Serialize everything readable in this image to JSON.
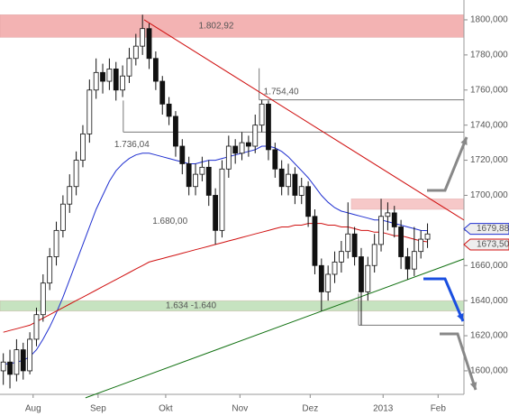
{
  "chart_data": {
    "type": "candlestick",
    "x": [
      0,
      1,
      2,
      3,
      4,
      5,
      6,
      7,
      8,
      9,
      10,
      11,
      12,
      13,
      14,
      15,
      16,
      17,
      18,
      19,
      20,
      21,
      22,
      23,
      24,
      25,
      26,
      27,
      28,
      29,
      30,
      31,
      32,
      33,
      34,
      35,
      36,
      37,
      38,
      39,
      40,
      41,
      42,
      43,
      44,
      45,
      46,
      47,
      48,
      49,
      50,
      51,
      52,
      53,
      54,
      55,
      56,
      57,
      58,
      59,
      60,
      61,
      62,
      63,
      64
    ],
    "open": [
      1600,
      1605,
      1598,
      1612,
      1600,
      1618,
      1632,
      1650,
      1665,
      1680,
      1695,
      1705,
      1720,
      1735,
      1760,
      1770,
      1765,
      1772,
      1760,
      1768,
      1778,
      1785,
      1795,
      1778,
      1765,
      1752,
      1745,
      1728,
      1718,
      1705,
      1712,
      1716,
      1700,
      1680,
      1715,
      1728,
      1724,
      1730,
      1728,
      1740,
      1752,
      1726,
      1715,
      1705,
      1712,
      1700,
      1705,
      1688,
      1660,
      1645,
      1655,
      1662,
      1668,
      1678,
      1665,
      1645,
      1660,
      1672,
      1688,
      1690,
      1682,
      1665,
      1658,
      1668,
      1675
    ],
    "high": [
      1610,
      1612,
      1618,
      1616,
      1622,
      1636,
      1655,
      1670,
      1685,
      1700,
      1712,
      1725,
      1740,
      1766,
      1778,
      1775,
      1778,
      1776,
      1774,
      1784,
      1792,
      1802.92,
      1798,
      1782,
      1768,
      1756,
      1748,
      1732,
      1722,
      1718,
      1722,
      1720,
      1704,
      1720,
      1734,
      1732,
      1736,
      1734,
      1746,
      1754.4,
      1754,
      1730,
      1720,
      1718,
      1716,
      1710,
      1708,
      1692,
      1664,
      1660,
      1668,
      1674,
      1696,
      1682,
      1670,
      1665,
      1678,
      1698,
      1696,
      1694,
      1686,
      1670,
      1682,
      1680,
      1684
    ],
    "low": [
      1592,
      1590,
      1594,
      1595,
      1598,
      1614,
      1628,
      1646,
      1660,
      1676,
      1690,
      1700,
      1716,
      1730,
      1755,
      1758,
      1760,
      1754,
      1756,
      1764,
      1774,
      1780,
      1772,
      1760,
      1746,
      1740,
      1722,
      1712,
      1700,
      1700,
      1708,
      1694,
      1672,
      1676,
      1710,
      1718,
      1720,
      1722,
      1724,
      1736,
      1720,
      1710,
      1700,
      1700,
      1695,
      1695,
      1682,
      1655,
      1634,
      1640,
      1650,
      1656,
      1664,
      1660,
      1626,
      1640,
      1656,
      1668,
      1680,
      1676,
      1658,
      1652,
      1654,
      1664,
      1670
    ],
    "close": [
      1605,
      1598,
      1612,
      1600,
      1618,
      1632,
      1650,
      1665,
      1680,
      1695,
      1705,
      1720,
      1735,
      1760,
      1770,
      1765,
      1772,
      1760,
      1768,
      1778,
      1785,
      1795,
      1778,
      1765,
      1752,
      1745,
      1728,
      1718,
      1705,
      1712,
      1716,
      1700,
      1680,
      1715,
      1728,
      1724,
      1730,
      1728,
      1740,
      1752,
      1726,
      1715,
      1705,
      1712,
      1700,
      1705,
      1688,
      1660,
      1645,
      1655,
      1662,
      1668,
      1678,
      1665,
      1645,
      1660,
      1672,
      1688,
      1690,
      1682,
      1665,
      1658,
      1668,
      1675,
      1678
    ],
    "color": "#111111",
    "moving_averages": [
      {
        "color": "#1f2fd0",
        "values": [
          1604,
          1604,
          1605,
          1606,
          1608,
          1612,
          1618,
          1625,
          1633,
          1642,
          1652,
          1662,
          1672,
          1682,
          1692,
          1700,
          1708,
          1714,
          1718,
          1721,
          1723,
          1724,
          1724,
          1723,
          1722,
          1721,
          1720,
          1719,
          1718,
          1718,
          1719,
          1720,
          1720,
          1721,
          1722,
          1723,
          1724,
          1725,
          1726,
          1728,
          1728,
          1727,
          1725,
          1722,
          1718,
          1714,
          1710,
          1705,
          1700,
          1696,
          1693,
          1691,
          1690,
          1689,
          1688,
          1687,
          1686,
          1686,
          1685,
          1684,
          1683,
          1682,
          1681,
          1680,
          1679.88
        ]
      },
      {
        "color": "#d01010",
        "values": [
          1622,
          1623,
          1624,
          1625,
          1626,
          1628,
          1630,
          1632,
          1634,
          1636,
          1638,
          1640,
          1642,
          1644,
          1646,
          1648,
          1650,
          1652,
          1654,
          1656,
          1658,
          1660,
          1662,
          1663,
          1664,
          1665,
          1666,
          1667,
          1668,
          1669,
          1670,
          1671,
          1672,
          1673,
          1674,
          1675,
          1676,
          1677,
          1678,
          1679,
          1680,
          1681,
          1682,
          1682,
          1683,
          1683,
          1684,
          1684,
          1684,
          1683,
          1683,
          1682,
          1682,
          1681,
          1680,
          1680,
          1679,
          1679,
          1678,
          1677,
          1677,
          1676,
          1675,
          1674,
          1673.5
        ]
      }
    ],
    "xlim": [
      -0.5,
      69.5
    ],
    "xticks": [
      {
        "value": 4.5,
        "label": "Aug"
      },
      {
        "value": 14.3,
        "label": "Sep"
      },
      {
        "value": 24.5,
        "label": "Okt"
      },
      {
        "value": 35.7,
        "label": "Nov"
      },
      {
        "value": 46.3,
        "label": "Dez"
      },
      {
        "value": 57.3,
        "label": "2013"
      },
      {
        "value": 65.6,
        "label": "Feb"
      }
    ],
    "ylim": [
      1586.6,
      1811.3
    ],
    "yticks": [
      {
        "value": 1600,
        "label": "1600,000"
      },
      {
        "value": 1620,
        "label": "1620,000"
      },
      {
        "value": 1640,
        "label": "1640,000"
      },
      {
        "value": 1660,
        "label": "1660,000"
      },
      {
        "value": 1680,
        "label": "1680,000"
      },
      {
        "value": 1700,
        "label": "1700,000"
      },
      {
        "value": 1720,
        "label": "1720,000"
      },
      {
        "value": 1740,
        "label": "1740,000"
      },
      {
        "value": 1760,
        "label": "1760,000"
      },
      {
        "value": 1780,
        "label": "1780,000"
      },
      {
        "value": 1800,
        "label": "1800,000"
      }
    ],
    "bands": [
      {
        "low": 1790,
        "high": 1802.92,
        "label": "1.802,92",
        "color": "#f3b3b3"
      },
      {
        "low": 1634,
        "high": 1640,
        "label": "1.634 -1.640",
        "color": "#c6e3c0"
      },
      {
        "low": 1692,
        "high": 1698,
        "x_from": 52.5,
        "color": "#f6c8c8"
      }
    ],
    "levels": [
      {
        "value": 1754.4,
        "label": "1.754,40",
        "x_from": 38.6
      },
      {
        "value": 1736.04,
        "label": "1.736,04",
        "x_from": 18.1
      },
      {
        "value": 1626,
        "x_from": 53.6
      }
    ],
    "text_annotations": [
      {
        "value": 1680,
        "label": "1.680,00",
        "x": 22.5
      }
    ],
    "trendlines": [
      {
        "color": "#d01010",
        "x": [
          21.25,
          69.5
        ],
        "values": [
          1800,
          1685.9
        ]
      },
      {
        "color": "#107010",
        "x": [
          12.4,
          69.5
        ],
        "values": [
          1584.6,
          1663.8
        ]
      }
    ],
    "price_tags": [
      {
        "value": 1679.88,
        "label": "1679,88",
        "color": "#1f2fd0"
      },
      {
        "value": 1673.5,
        "label": "1673,50",
        "color": "#d01010"
      }
    ]
  }
}
